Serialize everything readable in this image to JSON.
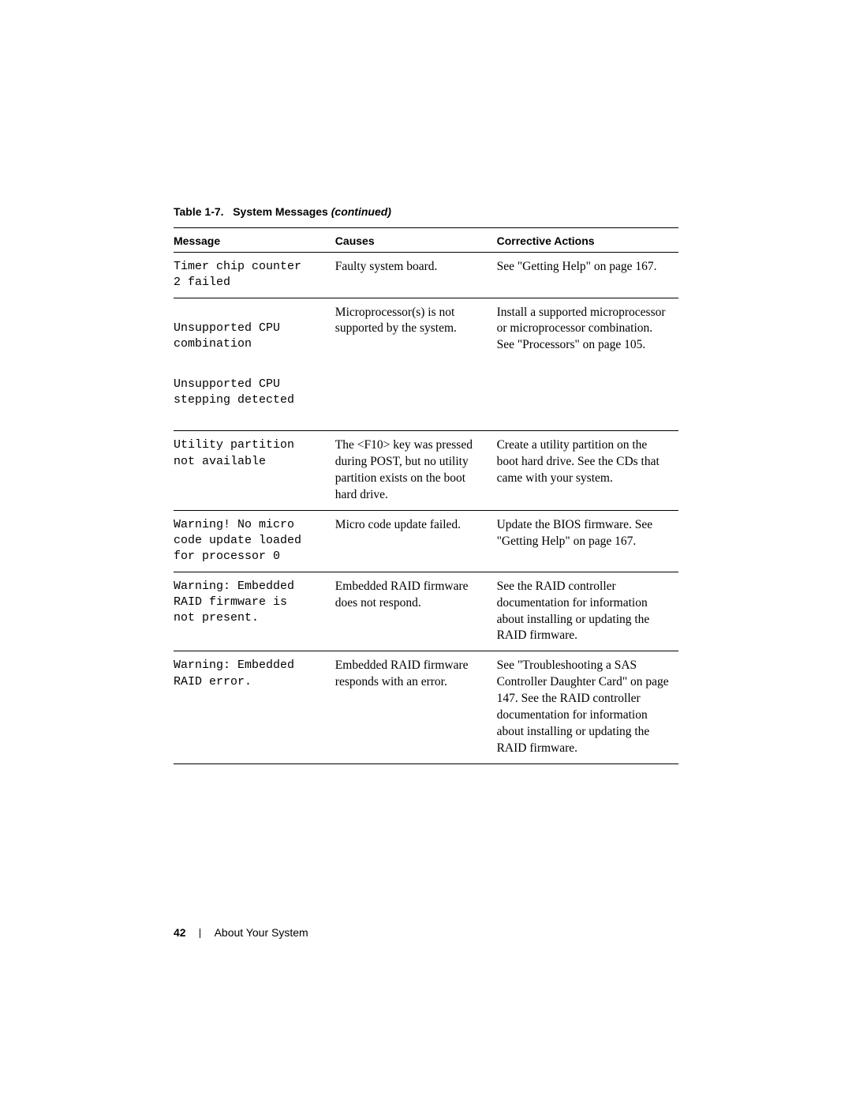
{
  "caption": {
    "label": "Table 1-7.",
    "title": "System Messages",
    "continued": "(continued)"
  },
  "headers": {
    "message": "Message",
    "causes": "Causes",
    "actions": "Corrective Actions"
  },
  "rows": [
    {
      "message": "Timer chip counter\n2 failed",
      "cause": "Faulty system board.",
      "action": "See \"Getting Help\" on page 167."
    },
    {
      "message_parts": [
        "Unsupported CPU\ncombination",
        "Unsupported CPU\nstepping detected"
      ],
      "cause": "Microprocessor(s) is not supported by the system.",
      "action": "Install a supported microprocessor or microprocessor combination. See \"Processors\" on page 105."
    },
    {
      "message": "Utility partition\nnot available",
      "cause": "The <F10> key was pressed during POST, but no utility partition exists on the boot hard drive.",
      "action": "Create a utility partition on the boot hard drive. See the CDs that came with your system."
    },
    {
      "message": "Warning! No micro\ncode update loaded\nfor processor 0",
      "cause": "Micro code update failed.",
      "action": "Update the BIOS firmware. See \"Getting Help\" on page 167."
    },
    {
      "message": "Warning: Embedded\nRAID firmware is\nnot present.",
      "cause": "Embedded RAID firmware does not respond.",
      "action": "See the RAID controller documentation for information about installing or updating the RAID firmware."
    },
    {
      "message": "Warning: Embedded\nRAID error.",
      "cause": "Embedded RAID firmware responds with an error.",
      "action": "See \"Troubleshooting a SAS Controller Daughter Card\" on page 147. See the RAID controller documentation for information about installing or updating the RAID firmware."
    }
  ],
  "footer": {
    "page_number": "42",
    "section": "About Your System"
  }
}
